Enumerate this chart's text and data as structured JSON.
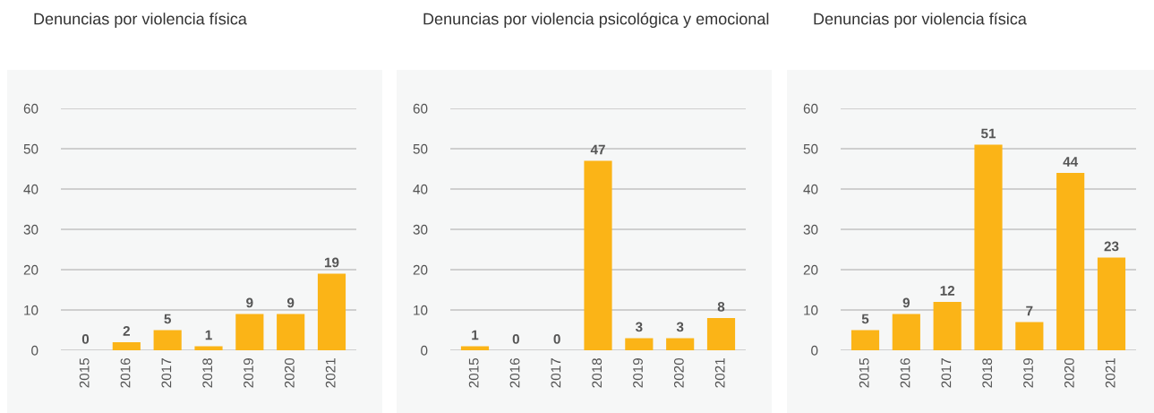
{
  "chart_data": [
    {
      "type": "bar",
      "title": "Denuncias por violencia física",
      "categories": [
        "2015",
        "2016",
        "2017",
        "2018",
        "2019",
        "2020",
        "2021"
      ],
      "values": [
        0,
        2,
        5,
        1,
        9,
        9,
        19
      ],
      "color": "#fbb417",
      "ylim": [
        0,
        60
      ],
      "yticks": [
        0,
        10,
        20,
        30,
        40,
        50,
        60
      ],
      "grid": "y",
      "data_labels": true
    },
    {
      "type": "bar",
      "title": "Denuncias por violencia psicológica y emocional",
      "categories": [
        "2015",
        "2016",
        "2017",
        "2018",
        "2019",
        "2020",
        "2021"
      ],
      "values": [
        1,
        0,
        0,
        47,
        3,
        3,
        8
      ],
      "color": "#fbb417",
      "ylim": [
        0,
        60
      ],
      "yticks": [
        0,
        10,
        20,
        30,
        40,
        50,
        60
      ],
      "grid": "y",
      "data_labels": true
    },
    {
      "type": "bar",
      "title": "Denuncias por violencia física",
      "categories": [
        "2015",
        "2016",
        "2017",
        "2018",
        "2019",
        "2020",
        "2021"
      ],
      "values": [
        5,
        9,
        12,
        51,
        7,
        44,
        23
      ],
      "color": "#fbb417",
      "ylim": [
        0,
        60
      ],
      "yticks": [
        0,
        10,
        20,
        30,
        40,
        50,
        60
      ],
      "grid": "y",
      "data_labels": true
    }
  ]
}
